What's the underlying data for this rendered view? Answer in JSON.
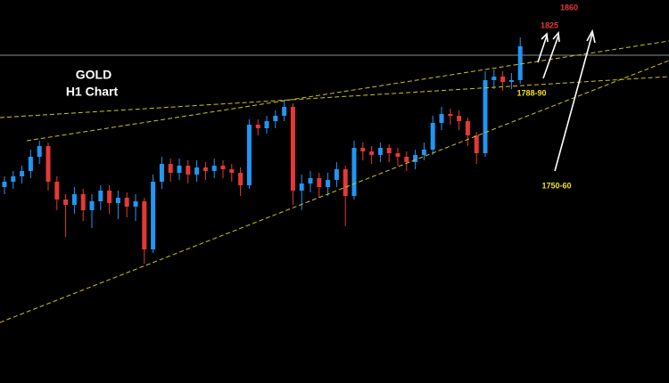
{
  "chart_data": {
    "type": "candlestick",
    "title": "GOLD",
    "subtitle": "H1 Chart",
    "annotations": [
      "1860",
      "1825",
      "1788-90",
      "1750-60"
    ],
    "up_color": "#2196f3",
    "down_color": "#e53935",
    "ylim": [
      1625,
      1840
    ],
    "open": [
      1735,
      1738,
      1741,
      1744,
      1752,
      1758,
      1738,
      1728,
      1725,
      1731,
      1722,
      1727,
      1733,
      1726,
      1729,
      1724,
      1727,
      1700,
      1738,
      1748,
      1743,
      1747,
      1742,
      1746,
      1744,
      1747,
      1745,
      1743,
      1736,
      1770,
      1768,
      1772,
      1775,
      1780,
      1733,
      1737,
      1740,
      1735,
      1739,
      1745,
      1730,
      1757,
      1755,
      1753,
      1757,
      1754,
      1752,
      1749,
      1753,
      1756,
      1771,
      1776,
      1775,
      1772,
      1764,
      1754,
      1795,
      1797,
      1794,
      1795
    ],
    "high": [
      1741,
      1744,
      1747,
      1756,
      1761,
      1760,
      1741,
      1731,
      1735,
      1734,
      1731,
      1736,
      1736,
      1733,
      1732,
      1731,
      1729,
      1742,
      1752,
      1751,
      1751,
      1750,
      1750,
      1749,
      1751,
      1750,
      1748,
      1746,
      1773,
      1773,
      1775,
      1778,
      1784,
      1782,
      1742,
      1744,
      1743,
      1743,
      1749,
      1747,
      1761,
      1760,
      1758,
      1760,
      1759,
      1757,
      1755,
      1756,
      1760,
      1775,
      1780,
      1779,
      1778,
      1774,
      1766,
      1800,
      1801,
      1800,
      1799,
      1819
    ],
    "low": [
      1731,
      1734,
      1737,
      1740,
      1748,
      1733,
      1722,
      1707,
      1720,
      1716,
      1712,
      1722,
      1720,
      1717,
      1718,
      1716,
      1692,
      1698,
      1734,
      1738,
      1739,
      1737,
      1738,
      1739,
      1740,
      1740,
      1738,
      1730,
      1734,
      1764,
      1765,
      1768,
      1772,
      1725,
      1722,
      1732,
      1729,
      1730,
      1735,
      1713,
      1728,
      1750,
      1748,
      1749,
      1749,
      1747,
      1744,
      1745,
      1750,
      1753,
      1767,
      1770,
      1767,
      1758,
      1748,
      1752,
      1790,
      1789,
      1790,
      1793
    ],
    "close": [
      1738,
      1741,
      1744,
      1752,
      1758,
      1738,
      1728,
      1725,
      1731,
      1722,
      1727,
      1733,
      1726,
      1729,
      1724,
      1727,
      1700,
      1738,
      1748,
      1743,
      1747,
      1742,
      1746,
      1744,
      1747,
      1745,
      1743,
      1736,
      1770,
      1768,
      1772,
      1775,
      1780,
      1733,
      1737,
      1740,
      1735,
      1739,
      1745,
      1730,
      1757,
      1755,
      1753,
      1757,
      1754,
      1752,
      1749,
      1753,
      1756,
      1771,
      1776,
      1775,
      1772,
      1764,
      1754,
      1795,
      1797,
      1794,
      1795,
      1814
    ]
  }
}
